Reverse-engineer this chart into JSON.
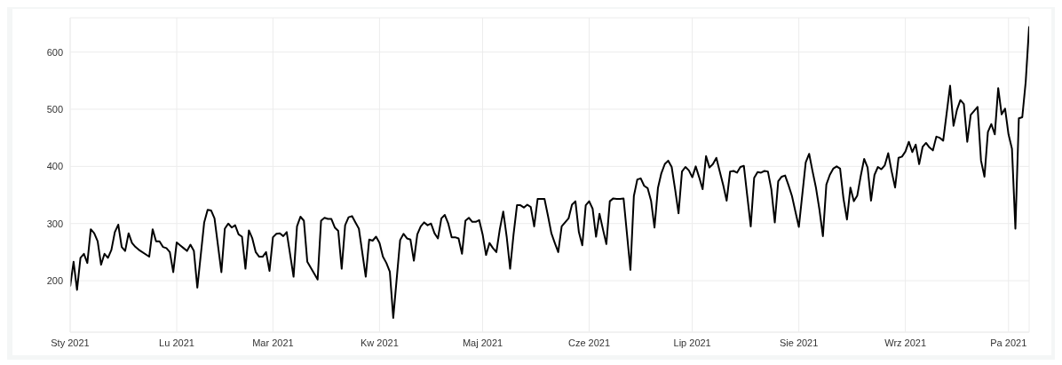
{
  "chart_data": {
    "type": "line",
    "x": [
      "2021-01-01",
      "2021-01-02",
      "2021-01-03",
      "2021-01-04",
      "2021-01-05",
      "2021-01-06",
      "2021-01-07",
      "2021-01-08",
      "2021-01-09",
      "2021-01-10",
      "2021-01-11",
      "2021-01-12",
      "2021-01-13",
      "2021-01-14",
      "2021-01-15",
      "2021-01-16",
      "2021-01-17",
      "2021-01-18",
      "2021-01-19",
      "2021-01-20",
      "2021-01-21",
      "2021-01-24",
      "2021-01-25",
      "2021-01-26",
      "2021-01-27",
      "2021-01-28",
      "2021-01-29",
      "2021-01-30",
      "2021-01-31",
      "2021-02-01",
      "2021-02-02",
      "2021-02-03",
      "2021-02-04",
      "2021-02-05",
      "2021-02-06",
      "2021-02-07",
      "2021-02-09",
      "2021-02-10",
      "2021-02-11",
      "2021-02-12",
      "2021-02-14",
      "2021-02-15",
      "2021-02-16",
      "2021-02-17",
      "2021-02-18",
      "2021-02-19",
      "2021-02-20",
      "2021-02-21",
      "2021-02-22",
      "2021-02-23",
      "2021-02-24",
      "2021-02-25",
      "2021-02-26",
      "2021-02-27",
      "2021-02-28",
      "2021-03-01",
      "2021-03-02",
      "2021-03-03",
      "2021-03-04",
      "2021-03-05",
      "2021-03-07",
      "2021-03-08",
      "2021-03-09",
      "2021-03-10",
      "2021-03-11",
      "2021-03-14",
      "2021-03-15",
      "2021-03-16",
      "2021-03-17",
      "2021-03-18",
      "2021-03-19",
      "2021-03-20",
      "2021-03-21",
      "2021-03-22",
      "2021-03-23",
      "2021-03-24",
      "2021-03-25",
      "2021-03-26",
      "2021-03-28",
      "2021-03-29",
      "2021-03-30",
      "2021-03-31",
      "2021-04-01",
      "2021-04-02",
      "2021-04-03",
      "2021-04-04",
      "2021-04-05",
      "2021-04-07",
      "2021-04-08",
      "2021-04-09",
      "2021-04-10",
      "2021-04-11",
      "2021-04-12",
      "2021-04-13",
      "2021-04-14",
      "2021-04-15",
      "2021-04-16",
      "2021-04-17",
      "2021-04-18",
      "2021-04-19",
      "2021-04-20",
      "2021-04-21",
      "2021-04-22",
      "2021-04-23",
      "2021-04-24",
      "2021-04-25",
      "2021-04-26",
      "2021-04-27",
      "2021-04-28",
      "2021-04-29",
      "2021-04-30",
      "2021-05-01",
      "2021-05-02",
      "2021-05-03",
      "2021-05-04",
      "2021-05-05",
      "2021-05-06",
      "2021-05-07",
      "2021-05-08",
      "2021-05-09",
      "2021-05-10",
      "2021-05-11",
      "2021-05-12",
      "2021-05-13",
      "2021-05-14",
      "2021-05-15",
      "2021-05-16",
      "2021-05-17",
      "2021-05-18",
      "2021-05-19",
      "2021-05-20",
      "2021-05-21",
      "2021-05-22",
      "2021-05-23",
      "2021-05-24",
      "2021-05-25",
      "2021-05-26",
      "2021-05-27",
      "2021-05-28",
      "2021-05-29",
      "2021-05-30",
      "2021-05-31",
      "2021-06-01",
      "2021-06-02",
      "2021-06-03",
      "2021-06-04",
      "2021-06-05",
      "2021-06-06",
      "2021-06-07",
      "2021-06-08",
      "2021-06-09",
      "2021-06-10",
      "2021-06-11",
      "2021-06-13",
      "2021-06-14",
      "2021-06-15",
      "2021-06-16",
      "2021-06-17",
      "2021-06-18",
      "2021-06-19",
      "2021-06-20",
      "2021-06-21",
      "2021-06-22",
      "2021-06-23",
      "2021-06-24",
      "2021-06-25",
      "2021-06-26",
      "2021-06-27",
      "2021-06-28",
      "2021-06-29",
      "2021-06-30",
      "2021-07-01",
      "2021-07-02",
      "2021-07-03",
      "2021-07-04",
      "2021-07-05",
      "2021-07-06",
      "2021-07-07",
      "2021-07-08",
      "2021-07-09",
      "2021-07-10",
      "2021-07-11",
      "2021-07-12",
      "2021-07-13",
      "2021-07-14",
      "2021-07-15",
      "2021-07-16",
      "2021-07-17",
      "2021-07-18",
      "2021-07-19",
      "2021-07-20",
      "2021-07-21",
      "2021-07-22",
      "2021-07-23",
      "2021-07-24",
      "2021-07-25",
      "2021-07-26",
      "2021-07-27",
      "2021-07-28",
      "2021-07-29",
      "2021-07-30",
      "2021-07-31",
      "2021-08-01",
      "2021-08-03",
      "2021-08-04",
      "2021-08-05",
      "2021-08-06",
      "2021-08-07",
      "2021-08-08",
      "2021-08-09",
      "2021-08-10",
      "2021-08-11",
      "2021-08-12",
      "2021-08-13",
      "2021-08-14",
      "2021-08-15",
      "2021-08-16",
      "2021-08-17",
      "2021-08-18",
      "2021-08-19",
      "2021-08-20",
      "2021-08-21",
      "2021-08-22",
      "2021-08-23",
      "2021-08-24",
      "2021-08-25",
      "2021-08-26",
      "2021-08-27",
      "2021-08-28",
      "2021-08-29",
      "2021-08-30",
      "2021-08-31",
      "2021-09-01",
      "2021-09-02",
      "2021-09-03",
      "2021-09-04",
      "2021-09-05",
      "2021-09-06",
      "2021-09-07",
      "2021-09-08",
      "2021-09-09",
      "2021-09-10",
      "2021-09-11",
      "2021-09-12",
      "2021-09-14",
      "2021-09-15",
      "2021-09-16",
      "2021-09-17",
      "2021-09-18",
      "2021-09-19",
      "2021-09-20",
      "2021-09-21",
      "2021-09-22",
      "2021-09-23",
      "2021-09-24",
      "2021-09-25",
      "2021-09-26",
      "2021-09-27",
      "2021-09-28",
      "2021-09-29",
      "2021-09-30",
      "2021-10-01",
      "2021-10-02",
      "2021-10-03",
      "2021-10-04",
      "2021-10-05",
      "2021-10-06",
      "2021-10-07"
    ],
    "series": [
      {
        "color": "#000000",
        "values": [
          190,
          233,
          184,
          240,
          247,
          231,
          290,
          283,
          269,
          228,
          247,
          240,
          254,
          285,
          298,
          259,
          252,
          283,
          266,
          259,
          254,
          242,
          290,
          269,
          269,
          259,
          257,
          250,
          215,
          267,
          262,
          257,
          252,
          263,
          252,
          188,
          302,
          324,
          323,
          309,
          215,
          291,
          300,
          293,
          297,
          281,
          277,
          221,
          288,
          274,
          250,
          242,
          242,
          250,
          217,
          276,
          282,
          283,
          278,
          285,
          207,
          295,
          312,
          305,
          233,
          202,
          305,
          310,
          308,
          308,
          293,
          287,
          221,
          297,
          311,
          313,
          302,
          291,
          207,
          272,
          270,
          277,
          266,
          242,
          231,
          216,
          135,
          271,
          282,
          274,
          272,
          235,
          281,
          295,
          302,
          297,
          300,
          283,
          274,
          309,
          315,
          300,
          276,
          276,
          274,
          247,
          305,
          310,
          303,
          303,
          306,
          281,
          245,
          266,
          257,
          250,
          290,
          321,
          277,
          221,
          281,
          332,
          332,
          328,
          333,
          329,
          295,
          343,
          343,
          343,
          314,
          283,
          266,
          250,
          295,
          302,
          309,
          333,
          339,
          285,
          262,
          332,
          339,
          326,
          277,
          317,
          290,
          264,
          339,
          344,
          343,
          343,
          344,
          219,
          348,
          377,
          379,
          366,
          362,
          340,
          293,
          362,
          388,
          404,
          410,
          399,
          360,
          318,
          391,
          399,
          393,
          381,
          400,
          381,
          360,
          418,
          398,
          404,
          415,
          391,
          367,
          340,
          391,
          392,
          389,
          399,
          401,
          348,
          295,
          380,
          390,
          389,
          392,
          391,
          360,
          302,
          374,
          382,
          384,
          367,
          348,
          321,
          294,
          407,
          422,
          391,
          362,
          324,
          278,
          368,
          385,
          396,
          400,
          396,
          343,
          307,
          363,
          339,
          349,
          383,
          413,
          398,
          340,
          385,
          399,
          395,
          402,
          423,
          391,
          363,
          415,
          417,
          426,
          443,
          425,
          438,
          404,
          434,
          441,
          433,
          428,
          452,
          450,
          445,
          541,
          471,
          499,
          516,
          509,
          443,
          490,
          497,
          504,
          410,
          382,
          460,
          474,
          456,
          537,
          491,
          501,
          456,
          431,
          291,
          484,
          486,
          548,
          645
        ]
      }
    ],
    "xlim": [
      "2021-01-01",
      "2021-10-07"
    ],
    "xticks": [
      {
        "value": "2021-01-01",
        "label": "Sty 2021"
      },
      {
        "value": "2021-02-01",
        "label": "Lu 2021"
      },
      {
        "value": "2021-03-01",
        "label": "Mar 2021"
      },
      {
        "value": "2021-04-01",
        "label": "Kw 2021"
      },
      {
        "value": "2021-05-01",
        "label": "Maj 2021"
      },
      {
        "value": "2021-06-01",
        "label": "Cze 2021"
      },
      {
        "value": "2021-07-01",
        "label": "Lip 2021"
      },
      {
        "value": "2021-08-01",
        "label": "Sie 2021"
      },
      {
        "value": "2021-09-01",
        "label": "Wrz 2021"
      },
      {
        "value": "2021-10-01",
        "label": "Pa 2021"
      }
    ],
    "ylim": [
      110,
      660
    ],
    "yticks": [
      200,
      300,
      400,
      500,
      600
    ],
    "grid": true,
    "line_style": "solid"
  }
}
